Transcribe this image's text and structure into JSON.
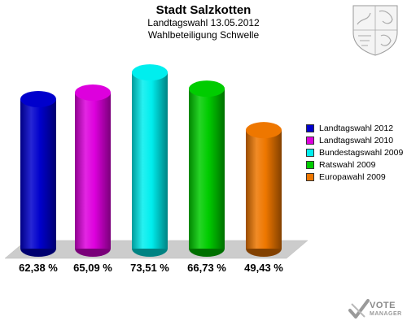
{
  "header": {
    "title": "Stadt Salzkotten",
    "subtitle1": "Landtagswahl 13.05.2012",
    "subtitle2": "Wahlbeteiligung Schwelle"
  },
  "chart_data": {
    "type": "bar",
    "categories": [
      "Landtagswahl 2012",
      "Landtagswahl 2010",
      "Bundestagswahl 2009",
      "Ratswahl 2009",
      "Europawahl 2009"
    ],
    "values": [
      62.38,
      65.09,
      73.51,
      66.73,
      49.43
    ],
    "value_labels": [
      "62,38 %",
      "65,09 %",
      "73,51 %",
      "66,73 %",
      "49,43 %"
    ],
    "colors": [
      "#0000cc",
      "#dd00dd",
      "#00eeee",
      "#00cc00",
      "#ee7700"
    ],
    "title": "Stadt Salzkotten",
    "subtitle": [
      "Landtagswahl 13.05.2012",
      "Wahlbeteiligung Schwelle"
    ],
    "xlabel": "",
    "ylabel": "",
    "ylim": [
      0,
      80
    ],
    "grid": false,
    "legend": "right"
  },
  "watermark": {
    "line1": "VOTE",
    "line2": "MANAGER"
  }
}
